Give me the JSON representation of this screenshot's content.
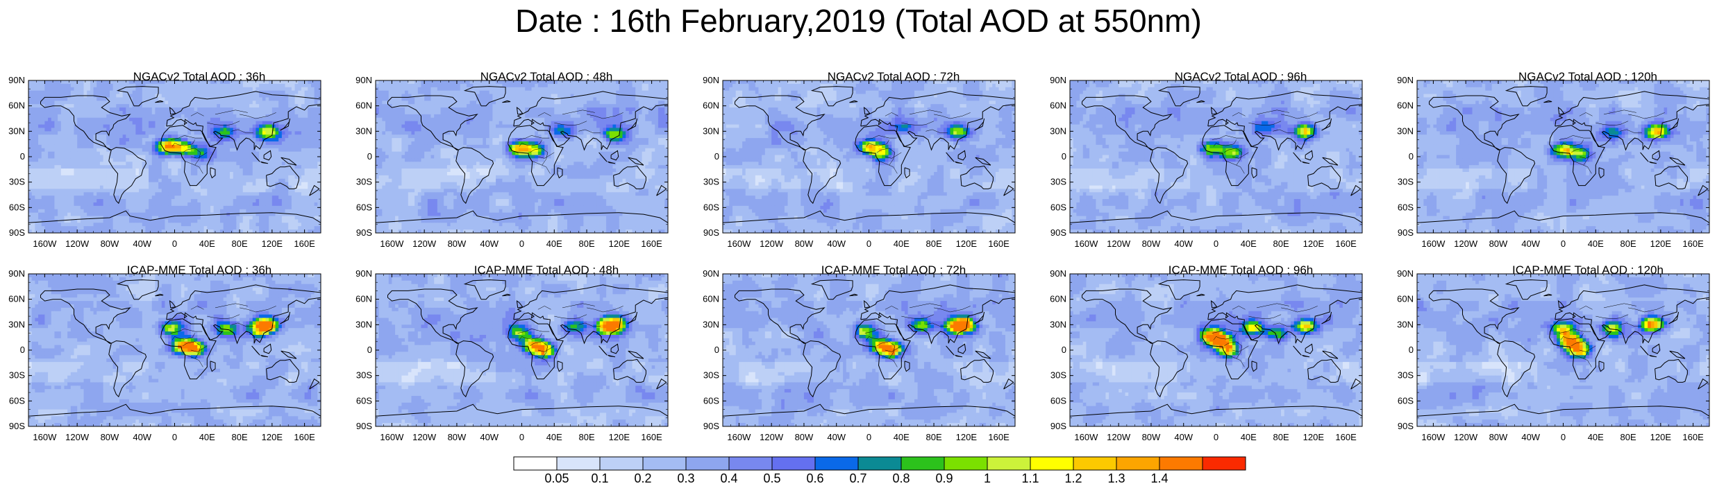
{
  "title": "Date : 16th February,2019 (Total AOD at 550nm)",
  "panels": [
    {
      "title": "NGACv2 Total AOD : 36h",
      "hotspots": [
        [
          -10,
          12,
          1.0
        ],
        [
          10,
          10,
          0.8
        ],
        [
          115,
          28,
          0.85
        ],
        [
          60,
          28,
          0.5
        ],
        [
          30,
          5,
          0.5
        ]
      ]
    },
    {
      "title": "NGACv2 Total AOD : 48h",
      "hotspots": [
        [
          -5,
          10,
          0.9
        ],
        [
          15,
          8,
          0.8
        ],
        [
          115,
          25,
          0.7
        ],
        [
          50,
          30,
          0.45
        ]
      ]
    },
    {
      "title": "NGACv2 Total AOD : 72h",
      "hotspots": [
        [
          0,
          12,
          0.8
        ],
        [
          15,
          5,
          0.75
        ],
        [
          110,
          28,
          0.7
        ],
        [
          40,
          35,
          0.45
        ]
      ]
    },
    {
      "title": "NGACv2 Total AOD : 96h",
      "hotspots": [
        [
          -5,
          10,
          0.75
        ],
        [
          20,
          5,
          0.7
        ],
        [
          110,
          30,
          0.85
        ],
        [
          60,
          35,
          0.45
        ]
      ]
    },
    {
      "title": "NGACv2 Total AOD : 120h",
      "hotspots": [
        [
          0,
          8,
          0.85
        ],
        [
          20,
          3,
          0.7
        ],
        [
          115,
          30,
          1.05
        ],
        [
          60,
          28,
          0.45
        ]
      ]
    },
    {
      "title": "ICAP-MME Total AOD : 36h",
      "hotspots": [
        [
          -5,
          25,
          0.8
        ],
        [
          10,
          5,
          1.0
        ],
        [
          25,
          2,
          1.1
        ],
        [
          105,
          25,
          0.9
        ],
        [
          115,
          30,
          1.1
        ],
        [
          65,
          25,
          0.6
        ]
      ]
    },
    {
      "title": "ICAP-MME Total AOD : 48h",
      "hotspots": [
        [
          -5,
          20,
          0.75
        ],
        [
          15,
          5,
          1.0
        ],
        [
          28,
          0,
          1.05
        ],
        [
          105,
          28,
          0.9
        ],
        [
          115,
          30,
          1.1
        ],
        [
          65,
          28,
          0.6
        ]
      ]
    },
    {
      "title": "ICAP-MME Total AOD : 72h",
      "hotspots": [
        [
          -5,
          22,
          0.8
        ],
        [
          15,
          5,
          1.0
        ],
        [
          28,
          0,
          1.05
        ],
        [
          108,
          28,
          0.9
        ],
        [
          118,
          30,
          1.05
        ],
        [
          65,
          28,
          0.6
        ]
      ]
    },
    {
      "title": "ICAP-MME Total AOD : 96h",
      "hotspots": [
        [
          -8,
          18,
          1.1
        ],
        [
          5,
          12,
          1.2
        ],
        [
          15,
          0,
          1.05
        ],
        [
          45,
          25,
          0.8
        ],
        [
          110,
          28,
          1.0
        ],
        [
          75,
          20,
          0.7
        ]
      ]
    },
    {
      "title": "ICAP-MME Total AOD : 120h",
      "hotspots": [
        [
          0,
          25,
          0.9
        ],
        [
          10,
          10,
          1.2
        ],
        [
          20,
          0,
          1.05
        ],
        [
          110,
          30,
          1.25
        ],
        [
          60,
          25,
          0.7
        ]
      ]
    }
  ],
  "axes": {
    "lat_labels": [
      "90N",
      "60N",
      "30N",
      "0",
      "30S",
      "60S",
      "90S"
    ],
    "lon_labels": [
      "160W",
      "120W",
      "80W",
      "40W",
      "0",
      "40E",
      "80E",
      "120E",
      "160E"
    ]
  },
  "colorbar": {
    "colors": [
      "#ffffff",
      "#d8e4fb",
      "#bdd0f6",
      "#a4bcf3",
      "#8ea6ef",
      "#7888ef",
      "#6470f0",
      "#0a69e8",
      "#0b8a94",
      "#2cc21c",
      "#7be000",
      "#ccf23a",
      "#ffff00",
      "#fcc900",
      "#fca500",
      "#fc7a00",
      "#fa2a00"
    ],
    "labels": [
      "0.05",
      "0.1",
      "0.2",
      "0.3",
      "0.4",
      "0.5",
      "0.6",
      "0.7",
      "0.8",
      "0.9",
      "1",
      "1.1",
      "1.2",
      "1.3",
      "1.4"
    ]
  }
}
